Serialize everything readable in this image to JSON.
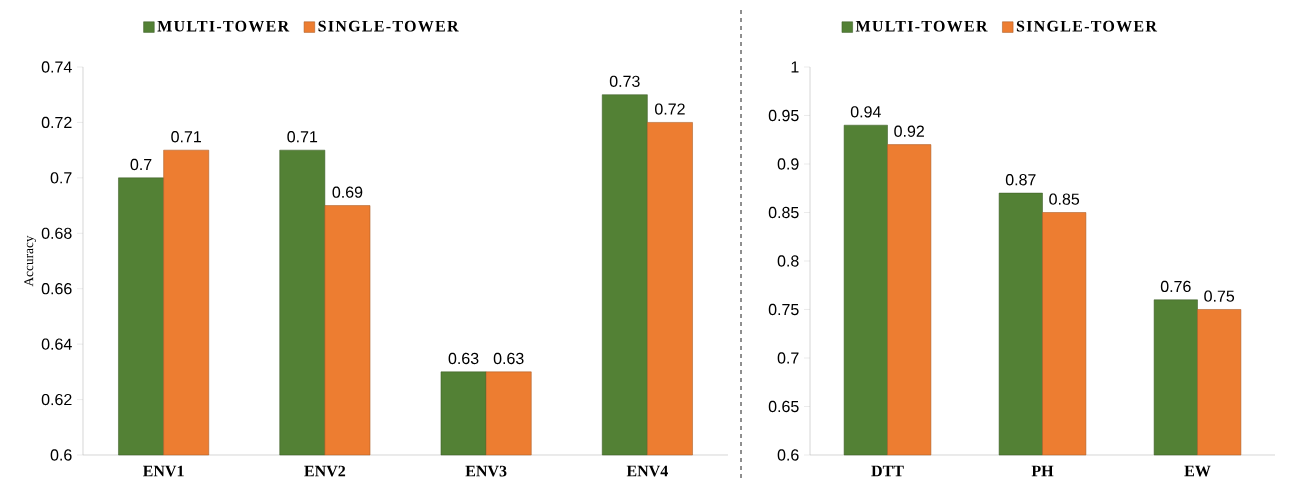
{
  "chart_data": [
    {
      "type": "bar",
      "ylabel": "Accuracy",
      "categories": [
        "ENV1",
        "ENV2",
        "ENV3",
        "ENV4"
      ],
      "series": [
        {
          "name": "MULTI-TOWER",
          "color": "#538135",
          "values": [
            0.7,
            0.71,
            0.63,
            0.73
          ]
        },
        {
          "name": "SINGLE-TOWER",
          "color": "#ed7d31",
          "values": [
            0.71,
            0.69,
            0.63,
            0.72
          ]
        }
      ],
      "ylim": [
        0.6,
        0.74
      ],
      "yticks": [
        0.6,
        0.62,
        0.64,
        0.66,
        0.68,
        0.7,
        0.72,
        0.74
      ],
      "data_labels": true,
      "legend": "top"
    },
    {
      "type": "bar",
      "categories": [
        "DTT",
        "PH",
        "EW"
      ],
      "series": [
        {
          "name": "MULTI-TOWER",
          "color": "#538135",
          "values": [
            0.94,
            0.87,
            0.76
          ]
        },
        {
          "name": "SINGLE-TOWER",
          "color": "#ed7d31",
          "values": [
            0.92,
            0.85,
            0.75
          ]
        }
      ],
      "ylim": [
        0.6,
        1
      ],
      "yticks": [
        0.6,
        0.65,
        0.7,
        0.75,
        0.8,
        0.85,
        0.9,
        0.95,
        1
      ],
      "data_labels": true,
      "legend": "top"
    }
  ]
}
